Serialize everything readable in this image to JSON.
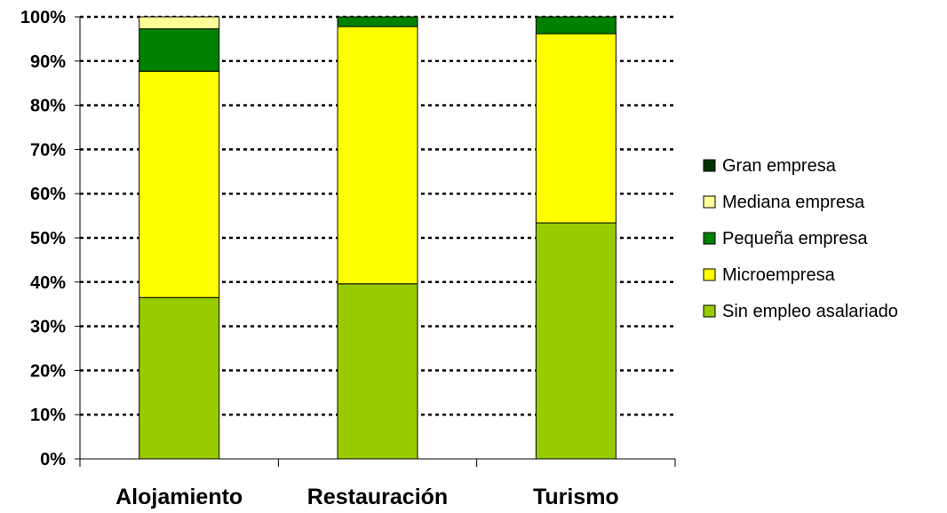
{
  "chart_data": {
    "type": "bar",
    "stacked": true,
    "percent": true,
    "categories": [
      "Alojamiento",
      "Restauración",
      "Turismo"
    ],
    "series": [
      {
        "name": "Sin empleo asalariado",
        "color": "#99CC00",
        "values": [
          36.5,
          39.6,
          53.4
        ]
      },
      {
        "name": "Microempresa",
        "color": "#FFFF00",
        "values": [
          51.2,
          58.2,
          42.8
        ]
      },
      {
        "name": "Pequeña empresa",
        "color": "#008000",
        "values": [
          9.6,
          2.2,
          3.8
        ]
      },
      {
        "name": "Mediana empresa",
        "color": "#FFFF99",
        "values": [
          2.7,
          0.0,
          0.0
        ]
      },
      {
        "name": "Gran empresa",
        "color": "#003300",
        "values": [
          0.0,
          0.0,
          0.0
        ]
      }
    ],
    "ylim": [
      0,
      100
    ],
    "yticks": [
      "0%",
      "10%",
      "20%",
      "30%",
      "40%",
      "50%",
      "60%",
      "70%",
      "80%",
      "90%",
      "100%"
    ],
    "grid": true,
    "legend_position": "right"
  }
}
